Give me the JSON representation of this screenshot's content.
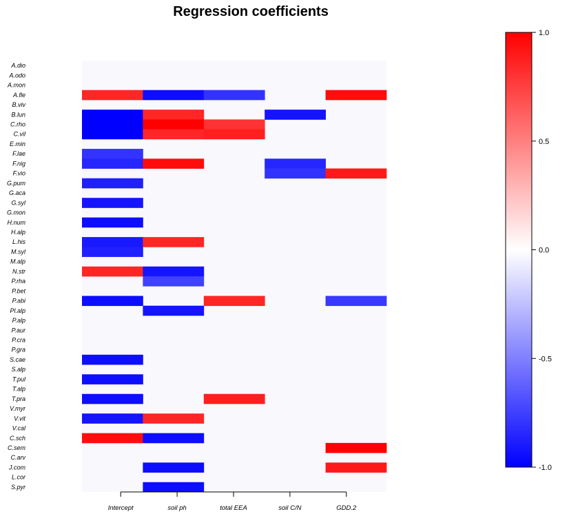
{
  "chart_data": {
    "type": "heatmap",
    "title": "Regression coefficients",
    "columns": [
      "Intercept",
      "soil ph",
      "total EEA",
      "soil C/N",
      "GDD.2"
    ],
    "rows": [
      "A.dio",
      "A.odo",
      "A.mon",
      "A.fle",
      "B.viv",
      "B.lun",
      "C.rho",
      "C.vil",
      "E.min",
      "F.lae",
      "F.nig",
      "F.vio",
      "G.pum",
      "G.aca",
      "G.syl",
      "G.mon",
      "H.num",
      "H.alp",
      "L.his",
      "M.syl",
      "M.alp",
      "N.str",
      "P.rha",
      "P.bet",
      "P.abi",
      "Pl.alp",
      "P.alp",
      "P.aur",
      "P.cra",
      "P.gra",
      "S.cae",
      "S.alp",
      "T.pul",
      "T.alp",
      "T.pra",
      "V.myr",
      "V.vit",
      "V.cal",
      "C.sch",
      "C.sem",
      "C.arv",
      "J.com",
      "L.cor",
      "S.pyr"
    ],
    "values": [
      [
        0,
        0,
        0,
        0,
        0
      ],
      [
        0,
        0,
        0,
        0,
        0
      ],
      [
        0,
        0,
        0,
        0,
        0
      ],
      [
        0.85,
        -0.95,
        -0.8,
        0,
        0.95
      ],
      [
        0,
        0,
        0,
        0,
        0
      ],
      [
        -1.0,
        0.85,
        0,
        -0.92,
        0
      ],
      [
        -1.0,
        1.0,
        0.8,
        0,
        0
      ],
      [
        -1.0,
        0.85,
        0.88,
        0,
        0
      ],
      [
        0,
        0,
        0,
        0,
        0
      ],
      [
        -0.8,
        0,
        0,
        0,
        0
      ],
      [
        -0.85,
        0.95,
        0,
        -0.85,
        0
      ],
      [
        0,
        0,
        0,
        -0.8,
        0.9
      ],
      [
        -0.88,
        0,
        0,
        0,
        0
      ],
      [
        0,
        0,
        0,
        0,
        0
      ],
      [
        -0.92,
        0,
        0,
        0,
        0
      ],
      [
        0,
        0,
        0,
        0,
        0
      ],
      [
        -0.95,
        0,
        0,
        0,
        0
      ],
      [
        0,
        0,
        0,
        0,
        0
      ],
      [
        -0.9,
        0.85,
        0,
        0,
        0
      ],
      [
        -0.88,
        0,
        0,
        0,
        0
      ],
      [
        0,
        0,
        0,
        0,
        0
      ],
      [
        0.85,
        -0.92,
        0,
        0,
        0
      ],
      [
        0,
        -0.75,
        0,
        0,
        0
      ],
      [
        0,
        0,
        0,
        0,
        0
      ],
      [
        -0.95,
        0,
        0.85,
        0,
        -0.78
      ],
      [
        0,
        -0.92,
        0,
        0,
        0
      ],
      [
        0,
        0,
        0,
        0,
        0
      ],
      [
        0,
        0,
        0,
        0,
        0
      ],
      [
        0,
        0,
        0,
        0,
        0
      ],
      [
        0,
        0,
        0,
        0,
        0
      ],
      [
        -0.95,
        0,
        0,
        0,
        0
      ],
      [
        0,
        0,
        0,
        0,
        0
      ],
      [
        -0.95,
        0,
        0,
        0,
        0
      ],
      [
        0,
        0,
        0,
        0,
        0
      ],
      [
        -0.95,
        0,
        0.88,
        0,
        0
      ],
      [
        0,
        0,
        0,
        0,
        0
      ],
      [
        -0.92,
        0.85,
        0,
        0,
        0
      ],
      [
        0,
        0,
        0,
        0,
        0
      ],
      [
        0.95,
        -0.95,
        0,
        0,
        0
      ],
      [
        0,
        0,
        0,
        0,
        1.0
      ],
      [
        0,
        0,
        0,
        0,
        0
      ],
      [
        0,
        -0.95,
        0,
        0,
        0.9
      ],
      [
        0,
        0,
        0,
        0,
        0
      ],
      [
        0,
        -0.95,
        0,
        0,
        0
      ]
    ],
    "zlim": [
      -1.0,
      1.0
    ],
    "colorbar_ticks": [
      "-1.0",
      "-0.5",
      "0.0",
      "0.5",
      "1.0"
    ],
    "colorbar_tick_values": [
      -1.0,
      -0.5,
      0.0,
      0.5,
      1.0
    ],
    "colors": {
      "low": "#0000ff",
      "mid": "#ffffff",
      "high": "#ff0000"
    }
  }
}
